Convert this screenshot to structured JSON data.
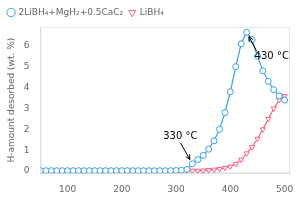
{
  "chart_data": {
    "type": "line",
    "ylabel": "H-amount desorbed (wt. %)",
    "x": [
      50,
      60,
      70,
      80,
      90,
      100,
      110,
      120,
      130,
      140,
      150,
      160,
      170,
      180,
      190,
      200,
      210,
      220,
      230,
      240,
      250,
      260,
      270,
      280,
      290,
      300,
      310,
      320,
      330,
      340,
      350,
      360,
      370,
      380,
      390,
      400,
      410,
      420,
      430,
      440,
      450,
      460,
      470,
      480,
      490,
      500
    ],
    "series": [
      {
        "name": "2LiBH₄+MgH₂+0.5CaC₂",
        "marker": "circle",
        "values": [
          0.02,
          0.02,
          0.02,
          0.02,
          0.02,
          0.02,
          0.02,
          0.02,
          0.02,
          0.02,
          0.02,
          0.02,
          0.02,
          0.02,
          0.02,
          0.02,
          0.02,
          0.02,
          0.02,
          0.02,
          0.02,
          0.02,
          0.02,
          0.02,
          0.02,
          0.03,
          0.04,
          0.08,
          0.35,
          0.55,
          0.75,
          1.05,
          1.45,
          2.0,
          2.8,
          3.8,
          5.0,
          6.1,
          6.65,
          6.3,
          5.5,
          4.8,
          4.3,
          3.9,
          3.6,
          3.4
        ]
      },
      {
        "name": "LiBH₄",
        "marker": "triangle-down",
        "values": [
          0.02,
          0.02,
          0.02,
          0.02,
          0.02,
          0.02,
          0.02,
          0.02,
          0.02,
          0.02,
          0.02,
          0.02,
          0.02,
          0.02,
          0.02,
          0.02,
          0.02,
          0.02,
          0.02,
          0.02,
          0.02,
          0.02,
          0.02,
          0.02,
          0.02,
          0.02,
          0.02,
          0.02,
          0.02,
          0.02,
          0.03,
          0.05,
          0.07,
          0.1,
          0.15,
          0.22,
          0.35,
          0.55,
          0.85,
          1.15,
          1.55,
          2.0,
          2.5,
          3.0,
          3.4,
          3.6
        ]
      }
    ],
    "xlim": [
      50,
      510
    ],
    "ylim": [
      -0.1,
      6.9
    ],
    "xticks": [
      100,
      200,
      300,
      400,
      500
    ],
    "yticks": [
      0,
      1,
      2,
      3,
      4,
      5,
      6
    ],
    "grid": false,
    "legend": "upper left",
    "annotations": [
      {
        "text": "430 °C",
        "x": 430,
        "y": 6.65
      },
      {
        "text": "330 °C",
        "x": 330,
        "y": 0.35
      }
    ]
  }
}
